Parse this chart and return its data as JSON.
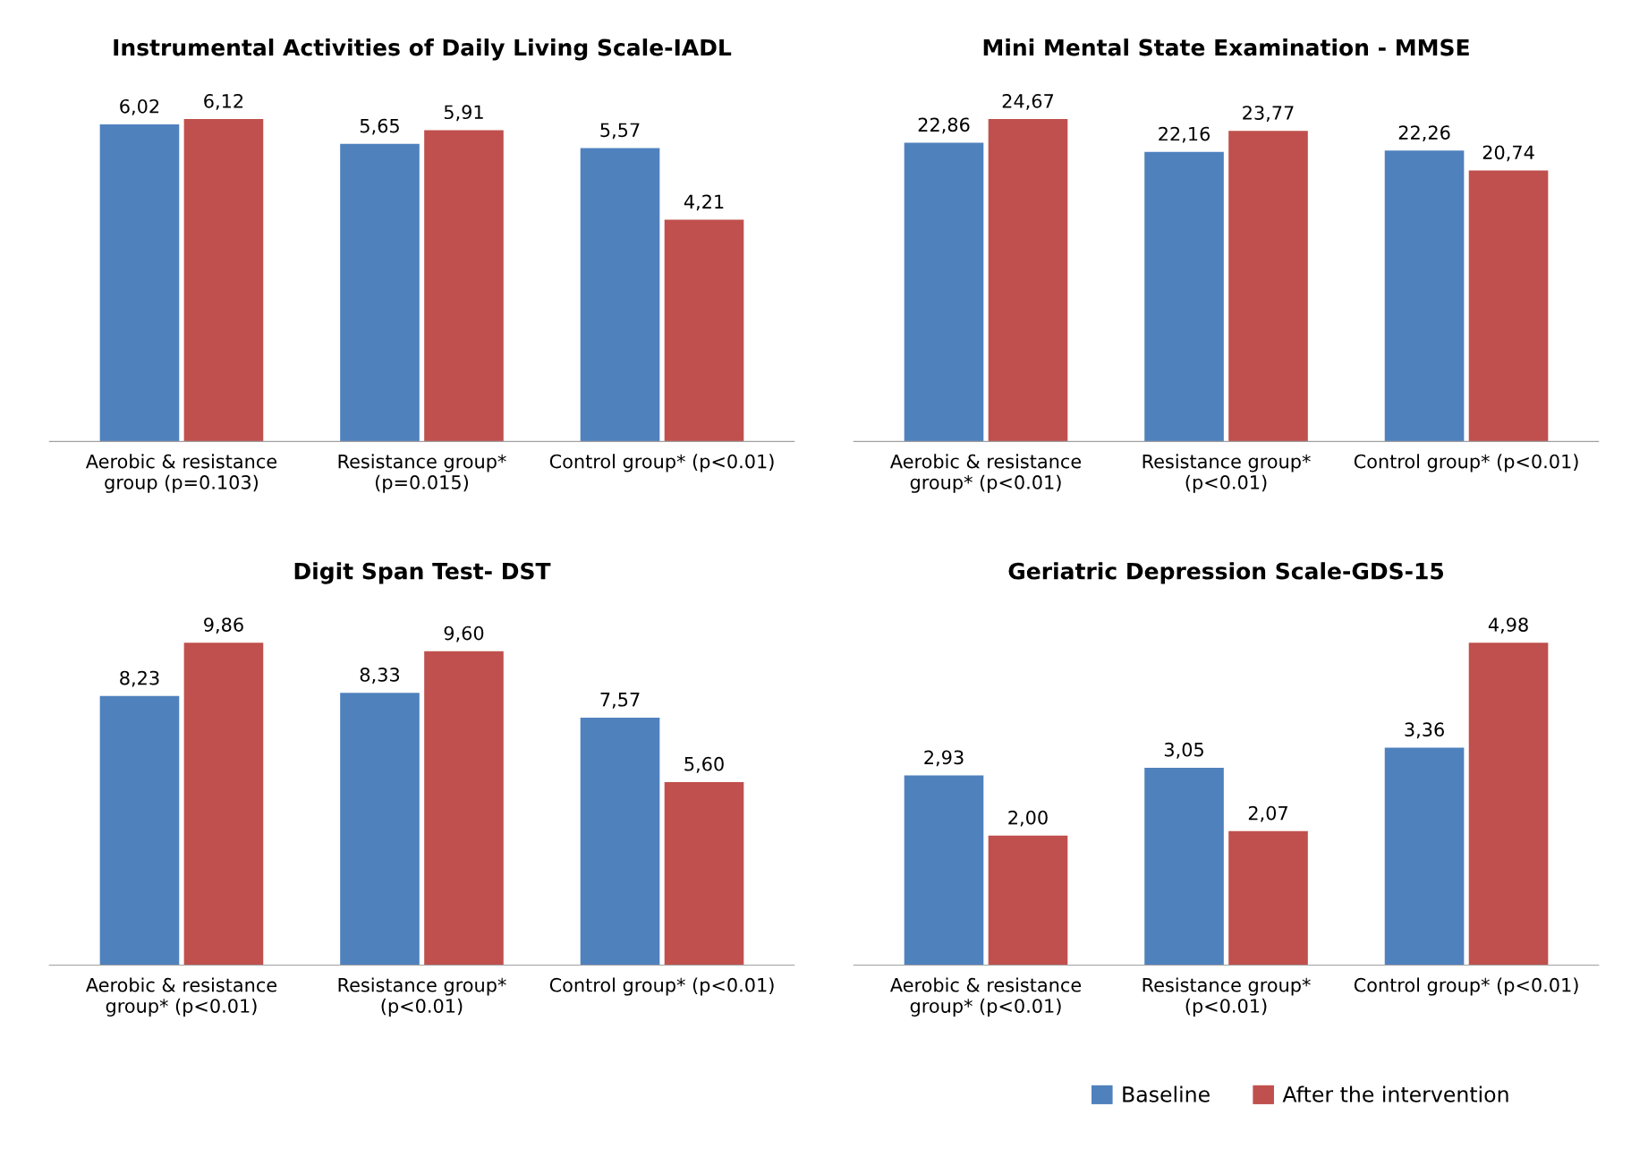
{
  "chart_data": [
    {
      "type": "bar",
      "title": "Instrumental Activities of Daily Living Scale-IADL",
      "categories": [
        "Aerobic & resistance\ngroup (p=0.103)",
        "Resistance group*\n(p=0.015)",
        "Control group* (p<0.01)"
      ],
      "series": [
        {
          "color": "#4f81bd",
          "values": [
            6.02,
            5.65,
            5.57
          ],
          "value_labels": [
            "6,02",
            "5,65",
            "5,57"
          ]
        },
        {
          "color": "#c0504d",
          "values": [
            6.12,
            5.91,
            4.21
          ],
          "value_labels": [
            "6,12",
            "5,91",
            "4,21"
          ]
        }
      ],
      "grid": false,
      "legend": false
    },
    {
      "type": "bar",
      "title": "Mini Mental State Examination - MMSE",
      "categories": [
        "Aerobic & resistance\ngroup* (p<0.01)",
        "Resistance group*\n(p<0.01)",
        "Control group* (p<0.01)"
      ],
      "series": [
        {
          "color": "#4f81bd",
          "values": [
            22.86,
            22.16,
            22.26
          ],
          "value_labels": [
            "22,86",
            "22,16",
            "22,26"
          ]
        },
        {
          "color": "#c0504d",
          "values": [
            24.67,
            23.77,
            20.74
          ],
          "value_labels": [
            "24,67",
            "23,77",
            "20,74"
          ]
        }
      ],
      "grid": false,
      "legend": false
    },
    {
      "type": "bar",
      "title": "Digit Span Test- DST",
      "categories": [
        "Aerobic & resistance\ngroup* (p<0.01)",
        "Resistance group*\n(p<0.01)",
        "Control group* (p<0.01)"
      ],
      "series": [
        {
          "color": "#4f81bd",
          "values": [
            8.23,
            8.33,
            7.57
          ],
          "value_labels": [
            "8,23",
            "8,33",
            "7,57"
          ]
        },
        {
          "color": "#c0504d",
          "values": [
            9.86,
            9.6,
            5.6
          ],
          "value_labels": [
            "9,86",
            "9,60",
            "5,60"
          ]
        }
      ],
      "grid": false,
      "legend": false
    },
    {
      "type": "bar",
      "title": "Geriatric Depression Scale-GDS-15",
      "categories": [
        "Aerobic & resistance\ngroup* (p<0.01)",
        "Resistance group*\n(p<0.01)",
        "Control group* (p<0.01)"
      ],
      "series": [
        {
          "name": "Baseline",
          "color": "#4f81bd",
          "values": [
            2.93,
            3.05,
            3.36
          ],
          "value_labels": [
            "2,93",
            "3,05",
            "3,36"
          ]
        },
        {
          "name": "After the intervention",
          "color": "#c0504d",
          "values": [
            2.0,
            2.07,
            4.98
          ],
          "value_labels": [
            "2,00",
            "2,07",
            "4,98"
          ]
        }
      ],
      "grid": false,
      "legend": "bottom"
    }
  ]
}
